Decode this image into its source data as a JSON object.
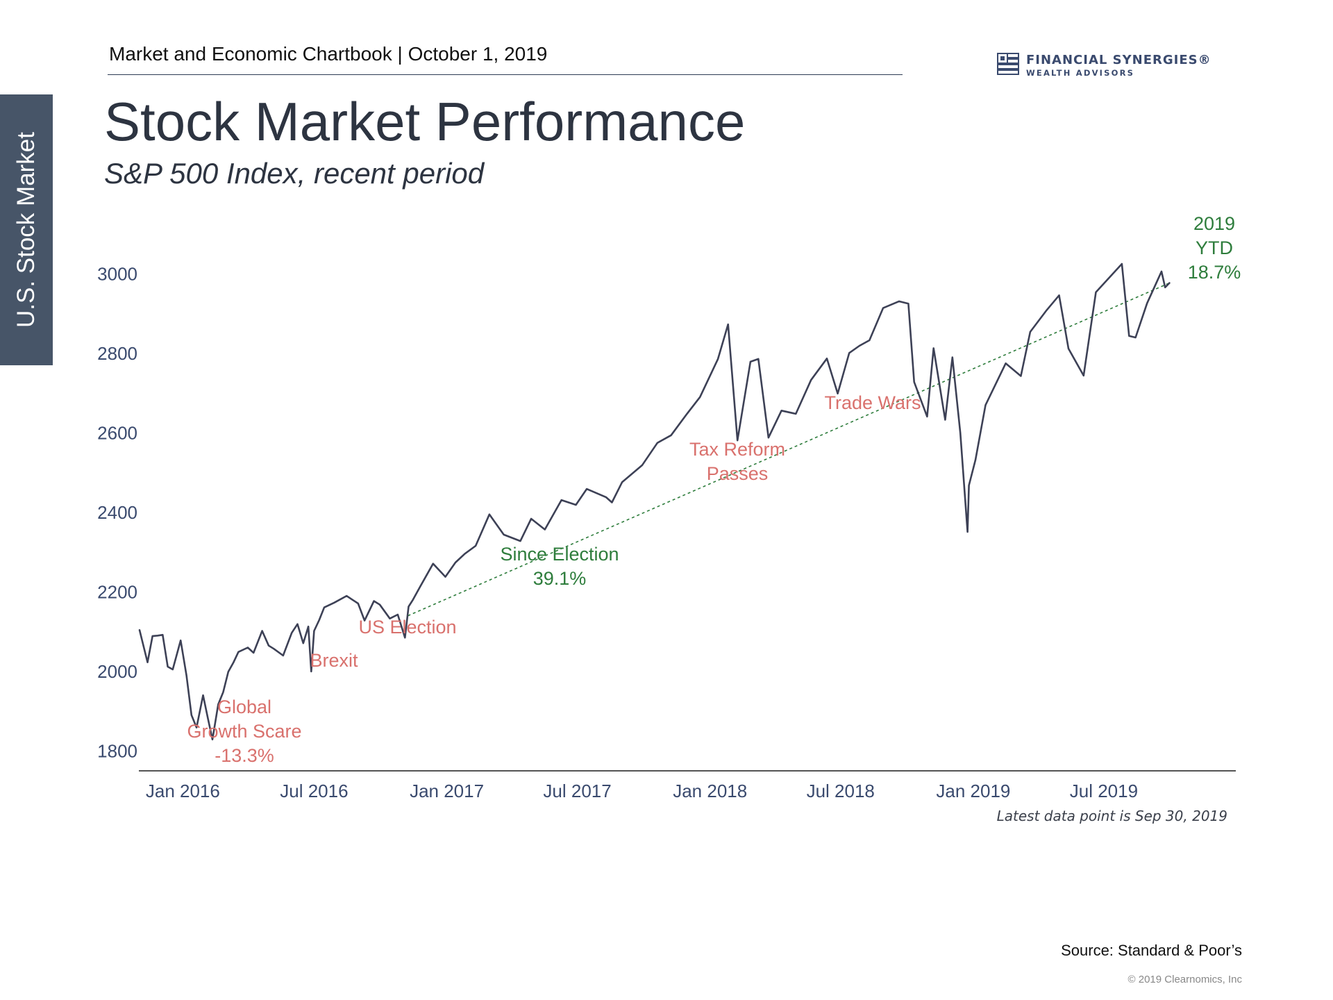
{
  "header": {
    "text": "Market and Economic Chartbook | October 1, 2019",
    "logo_name": "FINANCIAL SYNERGIES®",
    "logo_sub": "WEALTH ADVISORS",
    "logo_icon": "flag-square-icon"
  },
  "side_tab": {
    "label": "U.S. Stock Market",
    "color": "#475568"
  },
  "title": "Stock Market Performance",
  "subtitle": "S&P 500 Index, recent period",
  "chart_data": {
    "type": "line",
    "ylim": [
      1750,
      3060
    ],
    "yticks": [
      1800,
      2000,
      2200,
      2400,
      2600,
      2800,
      3000
    ],
    "ytick_labels": [
      "1800",
      "2000",
      "2200",
      "2400",
      "2600",
      "2800",
      "3000"
    ],
    "xlim": [
      "2015-11-01",
      "2019-12-31"
    ],
    "xticks": [
      "2016-01-01",
      "2016-07-01",
      "2017-01-01",
      "2017-07-01",
      "2018-01-01",
      "2018-07-01",
      "2019-01-01",
      "2019-07-01"
    ],
    "xtick_labels": [
      "Jan 2016",
      "Jul 2016",
      "Jan 2017",
      "Jul 2017",
      "Jan 2018",
      "Jul 2018",
      "Jan 2019",
      "Jul 2019"
    ],
    "grid": false,
    "line_color": "#3d4156",
    "series": [
      {
        "points": [
          [
            "2015-11-02",
            2104
          ],
          [
            "2015-11-13",
            2023
          ],
          [
            "2015-11-20",
            2089
          ],
          [
            "2015-11-27",
            2090
          ],
          [
            "2015-12-04",
            2092
          ],
          [
            "2015-12-11",
            2012
          ],
          [
            "2015-12-18",
            2005
          ],
          [
            "2015-12-29",
            2078
          ],
          [
            "2016-01-06",
            1990
          ],
          [
            "2016-01-13",
            1890
          ],
          [
            "2016-01-20",
            1859
          ],
          [
            "2016-01-29",
            1940
          ],
          [
            "2016-02-05",
            1880
          ],
          [
            "2016-02-11",
            1829
          ],
          [
            "2016-02-19",
            1917
          ],
          [
            "2016-02-26",
            1948
          ],
          [
            "2016-03-04",
            1999
          ],
          [
            "2016-03-11",
            2022
          ],
          [
            "2016-03-18",
            2049
          ],
          [
            "2016-03-31",
            2060
          ],
          [
            "2016-04-08",
            2047
          ],
          [
            "2016-04-20",
            2102
          ],
          [
            "2016-04-29",
            2065
          ],
          [
            "2016-05-06",
            2057
          ],
          [
            "2016-05-19",
            2040
          ],
          [
            "2016-05-31",
            2097
          ],
          [
            "2016-06-08",
            2119
          ],
          [
            "2016-06-16",
            2071
          ],
          [
            "2016-06-23",
            2113
          ],
          [
            "2016-06-27",
            2000
          ],
          [
            "2016-07-01",
            2102
          ],
          [
            "2016-07-08",
            2129
          ],
          [
            "2016-07-15",
            2161
          ],
          [
            "2016-07-29",
            2173
          ],
          [
            "2016-08-15",
            2190
          ],
          [
            "2016-08-31",
            2171
          ],
          [
            "2016-09-09",
            2128
          ],
          [
            "2016-09-22",
            2177
          ],
          [
            "2016-09-30",
            2168
          ],
          [
            "2016-10-14",
            2133
          ],
          [
            "2016-10-25",
            2143
          ],
          [
            "2016-11-04",
            2085
          ],
          [
            "2016-11-09",
            2163
          ],
          [
            "2016-11-15",
            2180
          ],
          [
            "2016-11-25",
            2213
          ],
          [
            "2016-12-13",
            2271
          ],
          [
            "2016-12-30",
            2238
          ],
          [
            "2017-01-13",
            2274
          ],
          [
            "2017-01-26",
            2296
          ],
          [
            "2017-02-10",
            2316
          ],
          [
            "2017-03-01",
            2395
          ],
          [
            "2017-03-21",
            2344
          ],
          [
            "2017-04-13",
            2328
          ],
          [
            "2017-04-28",
            2384
          ],
          [
            "2017-05-17",
            2357
          ],
          [
            "2017-06-09",
            2431
          ],
          [
            "2017-06-29",
            2419
          ],
          [
            "2017-07-14",
            2459
          ],
          [
            "2017-08-10",
            2438
          ],
          [
            "2017-08-18",
            2425
          ],
          [
            "2017-09-01",
            2476
          ],
          [
            "2017-09-29",
            2519
          ],
          [
            "2017-10-20",
            2575
          ],
          [
            "2017-11-08",
            2594
          ],
          [
            "2017-11-30",
            2648
          ],
          [
            "2017-12-18",
            2690
          ],
          [
            "2018-01-12",
            2786
          ],
          [
            "2018-01-26",
            2873
          ],
          [
            "2018-02-08",
            2581
          ],
          [
            "2018-02-26",
            2779
          ],
          [
            "2018-03-09",
            2786
          ],
          [
            "2018-03-23",
            2588
          ],
          [
            "2018-04-10",
            2656
          ],
          [
            "2018-04-30",
            2648
          ],
          [
            "2018-05-21",
            2733
          ],
          [
            "2018-06-12",
            2787
          ],
          [
            "2018-06-27",
            2699
          ],
          [
            "2018-07-13",
            2801
          ],
          [
            "2018-07-27",
            2819
          ],
          [
            "2018-08-10",
            2833
          ],
          [
            "2018-08-29",
            2914
          ],
          [
            "2018-09-20",
            2931
          ],
          [
            "2018-10-03",
            2925
          ],
          [
            "2018-10-11",
            2728
          ],
          [
            "2018-10-29",
            2641
          ],
          [
            "2018-11-07",
            2813
          ],
          [
            "2018-11-23",
            2633
          ],
          [
            "2018-12-03",
            2790
          ],
          [
            "2018-12-14",
            2600
          ],
          [
            "2018-12-24",
            2351
          ],
          [
            "2018-12-26",
            2468
          ],
          [
            "2019-01-04",
            2532
          ],
          [
            "2019-01-18",
            2670
          ],
          [
            "2019-02-15",
            2775
          ],
          [
            "2019-03-08",
            2743
          ],
          [
            "2019-03-21",
            2854
          ],
          [
            "2019-04-12",
            2907
          ],
          [
            "2019-04-30",
            2946
          ],
          [
            "2019-05-13",
            2812
          ],
          [
            "2019-06-03",
            2744
          ],
          [
            "2019-06-20",
            2954
          ],
          [
            "2019-07-26",
            3025
          ],
          [
            "2019-08-05",
            2844
          ],
          [
            "2019-08-14",
            2840
          ],
          [
            "2019-08-30",
            2926
          ],
          [
            "2019-09-19",
            3006
          ],
          [
            "2019-09-24",
            2966
          ],
          [
            "2019-09-30",
            2977
          ]
        ]
      }
    ],
    "trendlines": [
      {
        "from": [
          "2016-11-08",
          2140
        ],
        "to": [
          "2019-09-30",
          2977
        ],
        "color": "#2e7d3c",
        "style": "dotted"
      }
    ],
    "annotations": [
      {
        "lines": [
          "Global",
          "Growth Scare",
          "-13.3%"
        ],
        "color": "#d9716d"
      },
      {
        "lines": [
          "Brexit"
        ],
        "color": "#d9716d"
      },
      {
        "lines": [
          "US Election"
        ],
        "color": "#d9716d"
      },
      {
        "lines": [
          "Since Election",
          "39.1%"
        ],
        "color": "#2e7d3c"
      },
      {
        "lines": [
          "Tax Reform",
          "Passes"
        ],
        "color": "#d9716d"
      },
      {
        "lines": [
          "Trade Wars"
        ],
        "color": "#d9716d"
      },
      {
        "lines": [
          "2019",
          "YTD",
          "18.7%"
        ],
        "color": "#2e7d3c"
      }
    ]
  },
  "footer": {
    "latest_note": "Latest data point is Sep 30, 2019",
    "source": "Source: Standard & Poor’s",
    "copyright": "© 2019 Clearnomics, Inc"
  }
}
